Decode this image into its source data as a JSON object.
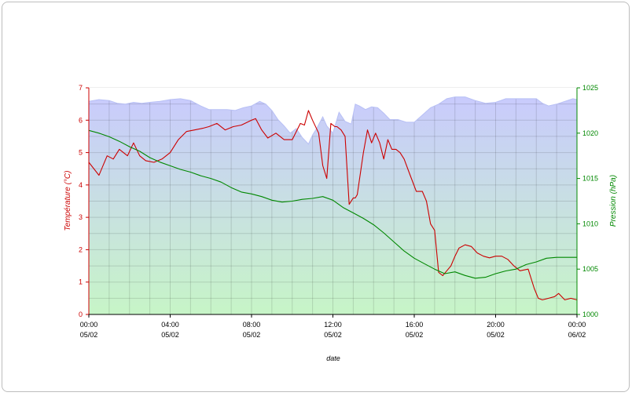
{
  "chart_data": {
    "type": "line",
    "title": "",
    "xlabel": "date",
    "x_range": [
      "05/02 00:00",
      "06/02 00:00"
    ],
    "x_ticks": [
      {
        "time": "00:00",
        "date": "05/02"
      },
      {
        "time": "04:00",
        "date": "05/02"
      },
      {
        "time": "08:00",
        "date": "05/02"
      },
      {
        "time": "12:00",
        "date": "05/02"
      },
      {
        "time": "16:00",
        "date": "05/02"
      },
      {
        "time": "20:00",
        "date": "05/02"
      },
      {
        "time": "00:00",
        "date": "06/02"
      }
    ],
    "y_left": {
      "label": "Température (°C)",
      "ylim": [
        0,
        7
      ],
      "ticks": [
        "0",
        "1",
        "2",
        "3",
        "4",
        "5",
        "6",
        "7"
      ],
      "color": "#cc0000"
    },
    "y_right": {
      "label": "Pression (hPa)",
      "ylim": [
        1000,
        1025
      ],
      "ticks": [
        "1000",
        "1005",
        "1010",
        "1015",
        "1020",
        "1025"
      ],
      "color": "#008800"
    },
    "grid": true,
    "series": [
      {
        "axis": "left",
        "color": "#cc0000",
        "x": [
          0,
          0.5,
          0.9,
          1.2,
          1.5,
          1.9,
          2.2,
          2.5,
          2.8,
          3.2,
          3.6,
          4.0,
          4.4,
          4.8,
          5.2,
          5.6,
          5.9,
          6.3,
          6.7,
          7.1,
          7.5,
          8.0,
          8.2,
          8.5,
          8.8,
          9.2,
          9.6,
          10.0,
          10.4,
          10.6,
          10.8,
          11.0,
          11.3,
          11.5,
          11.7,
          11.9,
          12.1,
          12.2,
          12.4,
          12.6,
          12.8,
          13.0,
          13.1,
          13.2,
          13.5,
          13.7,
          13.9,
          14.1,
          14.3,
          14.5,
          14.7,
          14.9,
          15.1,
          15.3,
          15.5,
          15.8,
          16.1,
          16.4,
          16.6,
          16.8,
          17.0,
          17.2,
          17.4,
          17.6,
          17.8,
          18.0,
          18.2,
          18.5,
          18.8,
          19.1,
          19.4,
          19.7,
          20.0,
          20.3,
          20.6,
          20.9,
          21.2,
          21.6,
          21.9,
          22.1,
          22.3,
          22.6,
          22.9,
          23.1,
          23.4,
          23.7,
          24.0
        ],
        "y": [
          4.7,
          4.3,
          4.9,
          4.8,
          5.1,
          4.9,
          5.3,
          4.9,
          4.75,
          4.7,
          4.8,
          5.0,
          5.4,
          5.65,
          5.7,
          5.75,
          5.8,
          5.9,
          5.7,
          5.8,
          5.85,
          6.0,
          6.05,
          5.7,
          5.45,
          5.6,
          5.4,
          5.4,
          5.9,
          5.85,
          6.3,
          6.0,
          5.6,
          4.6,
          4.2,
          5.9,
          5.8,
          5.8,
          5.7,
          5.5,
          3.4,
          3.6,
          3.6,
          3.7,
          5.0,
          5.7,
          5.3,
          5.6,
          5.3,
          4.8,
          5.4,
          5.1,
          5.1,
          5.0,
          4.8,
          4.3,
          3.8,
          3.8,
          3.5,
          2.8,
          2.6,
          1.3,
          1.2,
          1.35,
          1.5,
          1.8,
          2.05,
          2.15,
          2.1,
          1.9,
          1.8,
          1.75,
          1.8,
          1.8,
          1.7,
          1.5,
          1.35,
          1.4,
          0.8,
          0.5,
          0.45,
          0.5,
          0.55,
          0.65,
          0.45,
          0.5,
          0.45
        ]
      },
      {
        "axis": "right",
        "color": "#008800",
        "x": [
          0,
          0.5,
          1.0,
          1.5,
          2.0,
          2.5,
          3.0,
          3.5,
          4.0,
          4.5,
          5.0,
          5.5,
          6.0,
          6.5,
          7.0,
          7.5,
          8.0,
          8.5,
          9.0,
          9.5,
          10.0,
          10.5,
          11.0,
          11.5,
          12.0,
          12.5,
          13.0,
          13.5,
          14.0,
          14.5,
          15.0,
          15.5,
          16.0,
          16.5,
          17.0,
          17.5,
          18.0,
          18.5,
          19.0,
          19.5,
          20.0,
          20.5,
          21.0,
          21.5,
          22.0,
          22.5,
          23.0,
          23.5,
          24.0
        ],
        "y": [
          1020.3,
          1020.0,
          1019.6,
          1019.1,
          1018.5,
          1018.0,
          1017.3,
          1016.8,
          1016.4,
          1016.0,
          1015.7,
          1015.3,
          1015.0,
          1014.6,
          1014.0,
          1013.5,
          1013.3,
          1013.0,
          1012.6,
          1012.4,
          1012.5,
          1012.7,
          1012.8,
          1013.0,
          1012.6,
          1011.8,
          1011.2,
          1010.6,
          1009.9,
          1009.0,
          1008.0,
          1007.0,
          1006.2,
          1005.6,
          1005.0,
          1004.5,
          1004.7,
          1004.3,
          1004.0,
          1004.1,
          1004.5,
          1004.8,
          1005.0,
          1005.5,
          1005.8,
          1006.2,
          1006.3,
          1006.3,
          1006.3
        ]
      }
    ],
    "area": {
      "color": "#b8c0f5",
      "axis": "right",
      "x": [
        0,
        0.5,
        1.0,
        1.4,
        1.8,
        2.2,
        2.6,
        3.0,
        3.5,
        4.0,
        4.5,
        5.0,
        5.5,
        5.9,
        6.3,
        6.8,
        7.2,
        7.6,
        8.0,
        8.4,
        8.7,
        9.0,
        9.3,
        9.6,
        9.9,
        10.2,
        10.5,
        10.8,
        11.0,
        11.2,
        11.5,
        11.7,
        12.0,
        12.3,
        12.6,
        12.9,
        13.1,
        13.3,
        13.6,
        13.9,
        14.2,
        14.5,
        14.8,
        15.2,
        15.6,
        16.0,
        16.4,
        16.8,
        17.2,
        17.6,
        18.0,
        18.5,
        19.0,
        19.5,
        20.0,
        20.5,
        21.0,
        21.5,
        22.0,
        22.3,
        22.6,
        23.0,
        23.4,
        23.8,
        24.0
      ],
      "y": [
        1023.5,
        1023.7,
        1023.6,
        1023.3,
        1023.2,
        1023.4,
        1023.3,
        1023.4,
        1023.5,
        1023.7,
        1023.8,
        1023.6,
        1023.0,
        1022.6,
        1022.6,
        1022.6,
        1022.5,
        1022.8,
        1023.0,
        1023.5,
        1023.2,
        1022.5,
        1021.5,
        1020.8,
        1020.0,
        1020.5,
        1019.5,
        1018.8,
        1019.8,
        1020.5,
        1021.8,
        1020.8,
        1020.0,
        1022.3,
        1021.3,
        1021.0,
        1023.2,
        1023.0,
        1022.6,
        1022.9,
        1022.8,
        1022.2,
        1021.5,
        1021.5,
        1021.2,
        1021.2,
        1022.0,
        1022.8,
        1023.2,
        1023.8,
        1024.0,
        1024.0,
        1023.6,
        1023.3,
        1023.4,
        1023.8,
        1023.8,
        1023.8,
        1023.8,
        1023.3,
        1023.0,
        1023.2,
        1023.5,
        1023.8,
        1023.7
      ]
    }
  }
}
